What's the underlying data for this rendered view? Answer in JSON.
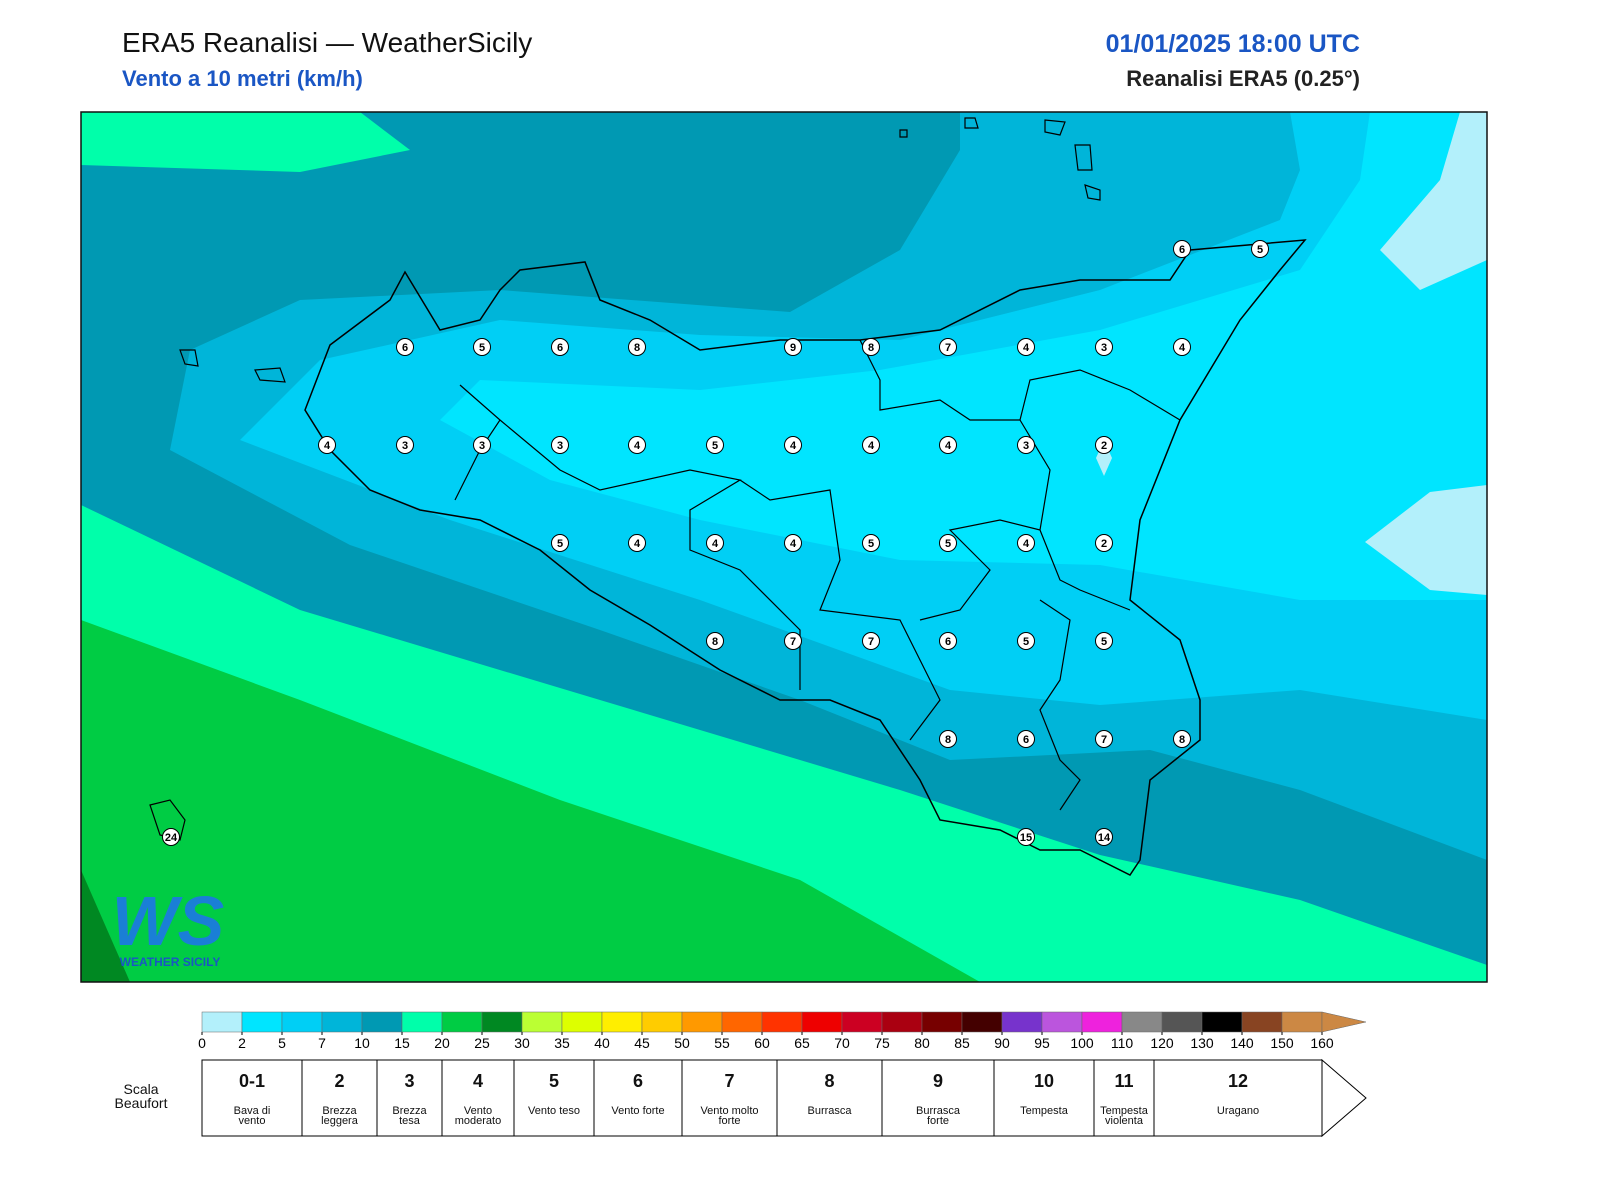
{
  "header": {
    "title": "ERA5 Reanalisi — WeatherSicily",
    "subtitle": "Vento a 10 metri (km/h)",
    "date": "01/01/2025 18:00 UTC",
    "source": "Reanalisi ERA5 (0.25°)"
  },
  "points": [
    6,
    5,
    6,
    8,
    9,
    8,
    7,
    4,
    3,
    4,
    4,
    3,
    3,
    3,
    4,
    5,
    4,
    4,
    4,
    3,
    2,
    5,
    4,
    4,
    4,
    5,
    5,
    4,
    2,
    8,
    7,
    7,
    6,
    5,
    5,
    8,
    6,
    7,
    8,
    6,
    5,
    15,
    14,
    24
  ],
  "logo": {
    "mark": "WS",
    "name": "WEATHER SICILY"
  },
  "colorbar": {
    "ticks": [
      0,
      2,
      5,
      7,
      10,
      15,
      20,
      25,
      30,
      35,
      40,
      45,
      50,
      55,
      60,
      65,
      70,
      75,
      80,
      85,
      90,
      95,
      100,
      110,
      120,
      130,
      140,
      150,
      160
    ],
    "colors": [
      "#b3f0fb",
      "#00e5ff",
      "#00cff5",
      "#00b5d9",
      "#0099b3",
      "#00ffaa",
      "#00cc44",
      "#008822",
      "#bbff33",
      "#ddff00",
      "#ffee00",
      "#ffcc00",
      "#ff9900",
      "#ff6600",
      "#ff3300",
      "#ee0000",
      "#cc0022",
      "#aa0011",
      "#770000",
      "#440000",
      "#7733cc",
      "#bb55dd",
      "#ee22dd",
      "#888888",
      "#555555",
      "#000000",
      "#884422",
      "#cc8844"
    ]
  },
  "beaufort": {
    "label": "Scala Beaufort",
    "levels": [
      {
        "num": "0-1",
        "desc": "Bava di vento"
      },
      {
        "num": "2",
        "desc": "Brezza leggera"
      },
      {
        "num": "3",
        "desc": "Brezza tesa"
      },
      {
        "num": "4",
        "desc": "Vento moderato"
      },
      {
        "num": "5",
        "desc": "Vento teso"
      },
      {
        "num": "6",
        "desc": "Vento forte"
      },
      {
        "num": "7",
        "desc": "Vento molto forte"
      },
      {
        "num": "8",
        "desc": "Burrasca"
      },
      {
        "num": "9",
        "desc": "Burrasca forte"
      },
      {
        "num": "10",
        "desc": "Tempesta"
      },
      {
        "num": "11",
        "desc": "Tempesta violenta"
      },
      {
        "num": "12",
        "desc": "Uragano"
      }
    ]
  }
}
